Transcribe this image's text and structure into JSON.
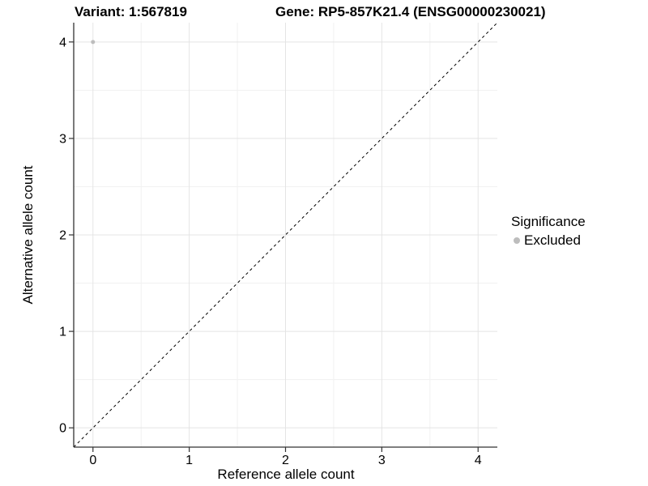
{
  "title_left": "Variant: 1:567819",
  "title_right": "Gene: RP5-857K21.4 (ENSG00000230021)",
  "legend": {
    "title": "Significance",
    "items": [
      {
        "label": "Excluded",
        "color": "#bdbdbd"
      }
    ]
  },
  "chart_data": {
    "type": "scatter",
    "title": "Variant: 1:567819 | Gene: RP5-857K21.4 (ENSG00000230021)",
    "xlabel": "Reference allele count",
    "ylabel": "Alternative allele count",
    "xlim": [
      -0.2,
      4.2
    ],
    "ylim": [
      -0.2,
      4.2
    ],
    "x_ticks": [
      0,
      1,
      2,
      3,
      4
    ],
    "y_ticks": [
      0,
      1,
      2,
      3,
      4
    ],
    "x_minor_ticks": [
      0.5,
      1.5,
      2.5,
      3.5
    ],
    "y_minor_ticks": [
      0.5,
      1.5,
      2.5,
      3.5
    ],
    "grid": true,
    "legend_position": "right",
    "series": [
      {
        "name": "Excluded",
        "color": "#bdbdbd",
        "points": [
          {
            "x": 0,
            "y": 4
          }
        ]
      }
    ],
    "reference_line": {
      "type": "abline",
      "slope": 1,
      "intercept": 0,
      "style": "dashed",
      "color": "#000000"
    },
    "colors": {
      "background": "#ffffff",
      "grid_major": "#e4e4e4",
      "grid_minor": "#f1f1f1",
      "axis_line": "#333333",
      "tick_mark": "#333333",
      "tick_text": "#000000"
    }
  }
}
